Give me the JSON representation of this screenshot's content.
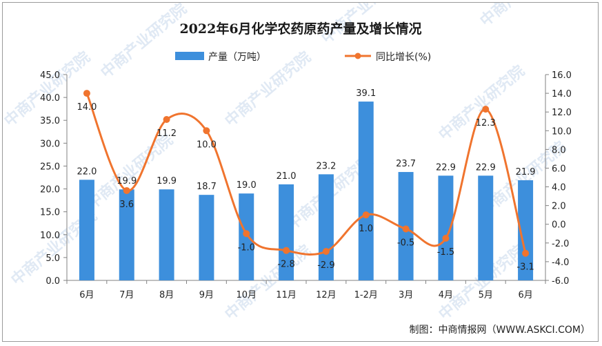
{
  "title": "2022年6月化学农药原药产量及增长情况",
  "legend": {
    "bar_label": "产量（万吨）",
    "line_label": "同比增长(%)"
  },
  "source": "制图：中商情报网（WWW.ASKCI.COM）",
  "watermark": "中商产业研究院",
  "colors": {
    "bar": "#3d8fdc",
    "line": "#f0742e"
  },
  "chart_data": {
    "type": "bar",
    "categories": [
      "6月",
      "7月",
      "8月",
      "9月",
      "10月",
      "11月",
      "12月",
      "1-2月",
      "3月",
      "4月",
      "5月",
      "6月"
    ],
    "series": [
      {
        "name": "产量（万吨）",
        "type": "bar",
        "axis": "left",
        "values": [
          22.0,
          19.9,
          19.9,
          18.7,
          19.0,
          21.0,
          23.2,
          39.1,
          23.7,
          22.9,
          22.9,
          21.9
        ],
        "labels": [
          "22.0",
          "19.9",
          "19.9",
          "18.7",
          "19.0",
          "21.0",
          "23.2",
          "39.1",
          "23.7",
          "22.9",
          "22.9",
          "21.9"
        ]
      },
      {
        "name": "同比增长(%)",
        "type": "line",
        "axis": "right",
        "smooth": true,
        "values": [
          14.0,
          3.6,
          11.2,
          10.0,
          -1.0,
          -2.8,
          -2.9,
          1.0,
          -0.5,
          -1.5,
          12.3,
          -3.1
        ],
        "labels": [
          "14.0",
          "3.6",
          "11.2",
          "10.0",
          "-1.0",
          "-2.8",
          "-2.9",
          "1.0",
          "-0.5",
          "-1.5",
          "12.3",
          "-3.1"
        ]
      }
    ],
    "left_axis": {
      "min": 0,
      "max": 45,
      "ticks": [
        "0.0",
        "5.0",
        "10.0",
        "15.0",
        "20.0",
        "25.0",
        "30.0",
        "35.0",
        "40.0",
        "45.0"
      ]
    },
    "right_axis": {
      "min": -6,
      "max": 16,
      "ticks": [
        "-6.0",
        "-4.0",
        "-2.0",
        "0.0",
        "2.0",
        "4.0",
        "6.0",
        "8.0",
        "10.0",
        "12.0",
        "14.0",
        "16.0"
      ]
    },
    "grid": false,
    "legend_position": "top-center"
  }
}
